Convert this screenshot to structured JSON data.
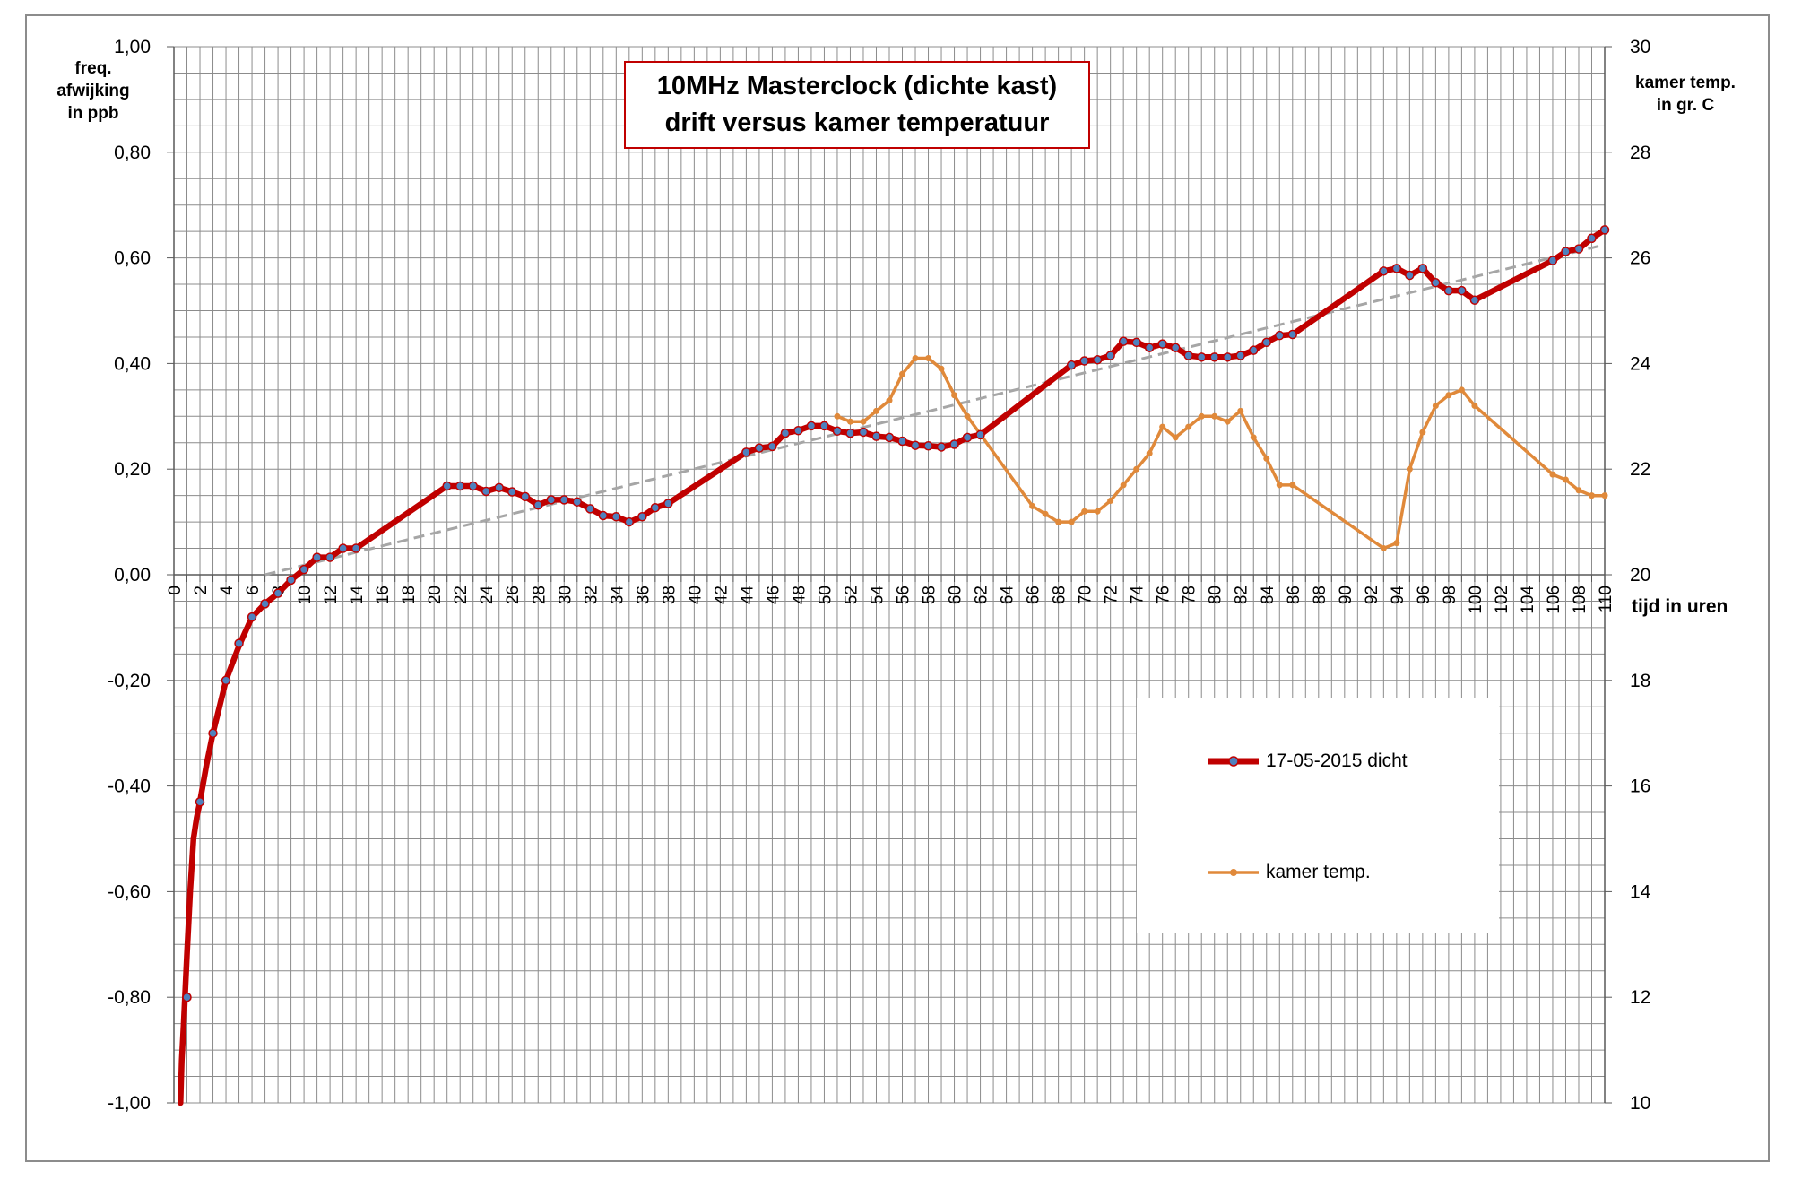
{
  "chart_data": {
    "type": "line",
    "title": [
      "10MHz Masterclock (dichte kast)",
      "drift versus kamer temperatuur"
    ],
    "xlabel": "tijd in uren",
    "ylabel_left": [
      "freq.",
      "afwijking",
      "in ppb"
    ],
    "ylabel_right": [
      "kamer temp.",
      "in gr. C"
    ],
    "xlim": [
      0,
      110
    ],
    "x_ticks": [
      "0",
      "2",
      "4",
      "6",
      "8",
      "10",
      "12",
      "14",
      "16",
      "18",
      "20",
      "22",
      "24",
      "26",
      "28",
      "30",
      "32",
      "34",
      "36",
      "38",
      "40",
      "42",
      "44",
      "46",
      "48",
      "50",
      "52",
      "54",
      "56",
      "58",
      "60",
      "62",
      "64",
      "66",
      "68",
      "70",
      "72",
      "74",
      "76",
      "78",
      "80",
      "82",
      "84",
      "86",
      "88",
      "90",
      "92",
      "94",
      "96",
      "98",
      "100",
      "102",
      "104",
      "106",
      "108",
      "110"
    ],
    "ylim_left": [
      -1.0,
      1.0
    ],
    "y_ticks_left": [
      "1,00",
      "0,80",
      "0,60",
      "0,40",
      "0,20",
      "0,00",
      "-0,20",
      "-0,40",
      "-0,60",
      "-0,80",
      "-1,00"
    ],
    "ylim_right": [
      10,
      30
    ],
    "y_ticks_right": [
      "30",
      "28",
      "26",
      "24",
      "22",
      "20",
      "18",
      "16",
      "14",
      "12",
      "10"
    ],
    "grid": true,
    "legend_position": "lower-right",
    "series": [
      {
        "name": "17-05-2015 dicht",
        "axis": "left",
        "color": "#c00000",
        "marker_color": "#4f81bd",
        "curve_x": [
          0.5,
          0.6,
          0.75,
          1,
          1.25,
          1.5,
          1.75,
          2,
          2.5,
          3,
          3.5,
          4,
          5,
          6
        ],
        "curve_y": [
          -1.0,
          -0.92,
          -0.85,
          -0.72,
          -0.6,
          -0.5,
          -0.46,
          -0.43,
          -0.36,
          -0.3,
          -0.25,
          -0.2,
          -0.135,
          -0.08
        ],
        "x": [
          1,
          2,
          3,
          4,
          5,
          6,
          7,
          8,
          9,
          10,
          11,
          12,
          13,
          14,
          21,
          22,
          23,
          24,
          25,
          26,
          27,
          28,
          29,
          30,
          31,
          32,
          33,
          34,
          35,
          36,
          37,
          38,
          44,
          45,
          46,
          47,
          48,
          49,
          50,
          51,
          52,
          53,
          54,
          55,
          56,
          57,
          58,
          59,
          60,
          61,
          62,
          69,
          70,
          71,
          72,
          73,
          74,
          75,
          76,
          77,
          78,
          79,
          80,
          81,
          82,
          83,
          84,
          85,
          86,
          93,
          94,
          95,
          96,
          97,
          98,
          99,
          100,
          106,
          107,
          108,
          109,
          110
        ],
        "y": [
          -0.8,
          -0.43,
          -0.3,
          -0.2,
          -0.13,
          -0.08,
          -0.055,
          -0.035,
          -0.01,
          0.01,
          0.033,
          0.033,
          0.05,
          0.05,
          0.168,
          0.168,
          0.168,
          0.158,
          0.165,
          0.157,
          0.148,
          0.132,
          0.142,
          0.142,
          0.138,
          0.125,
          0.112,
          0.11,
          0.1,
          0.11,
          0.127,
          0.135,
          0.232,
          0.24,
          0.243,
          0.268,
          0.273,
          0.282,
          0.282,
          0.272,
          0.268,
          0.27,
          0.262,
          0.26,
          0.253,
          0.245,
          0.244,
          0.242,
          0.247,
          0.26,
          0.265,
          0.397,
          0.405,
          0.407,
          0.415,
          0.442,
          0.44,
          0.43,
          0.437,
          0.43,
          0.415,
          0.412,
          0.412,
          0.412,
          0.415,
          0.425,
          0.44,
          0.453,
          0.455,
          0.575,
          0.58,
          0.567,
          0.58,
          0.553,
          0.538,
          0.538,
          0.52,
          0.595,
          0.612,
          0.617,
          0.637,
          0.653
        ]
      },
      {
        "name": "kamer temp.",
        "axis": "right",
        "color": "#e0893a",
        "x": [
          51,
          52,
          53,
          54,
          55,
          56,
          57,
          58,
          59,
          60,
          61,
          66,
          67,
          68,
          69,
          70,
          71,
          72,
          73,
          74,
          75,
          76,
          77,
          78,
          79,
          80,
          81,
          82,
          83,
          84,
          85,
          86,
          93,
          94,
          95,
          96,
          97,
          98,
          99,
          100,
          106,
          107,
          108,
          109,
          110
        ],
        "y": [
          23.0,
          22.9,
          22.9,
          23.1,
          23.3,
          23.8,
          24.1,
          24.1,
          23.9,
          23.4,
          23.0,
          21.3,
          21.15,
          21.0,
          21.0,
          21.2,
          21.2,
          21.4,
          21.7,
          22.0,
          22.3,
          22.8,
          22.6,
          22.8,
          23.0,
          23.0,
          22.9,
          23.1,
          22.6,
          22.2,
          21.7,
          21.7,
          20.5,
          20.6,
          22.0,
          22.7,
          23.2,
          23.4,
          23.5,
          23.2,
          21.9,
          21.8,
          21.6,
          21.5,
          21.5
        ]
      },
      {
        "name": "",
        "role": "trendline",
        "axis": "left",
        "color": "#a6a6a6",
        "x": [
          7,
          110
        ],
        "y": [
          0.0,
          0.625
        ]
      }
    ]
  }
}
